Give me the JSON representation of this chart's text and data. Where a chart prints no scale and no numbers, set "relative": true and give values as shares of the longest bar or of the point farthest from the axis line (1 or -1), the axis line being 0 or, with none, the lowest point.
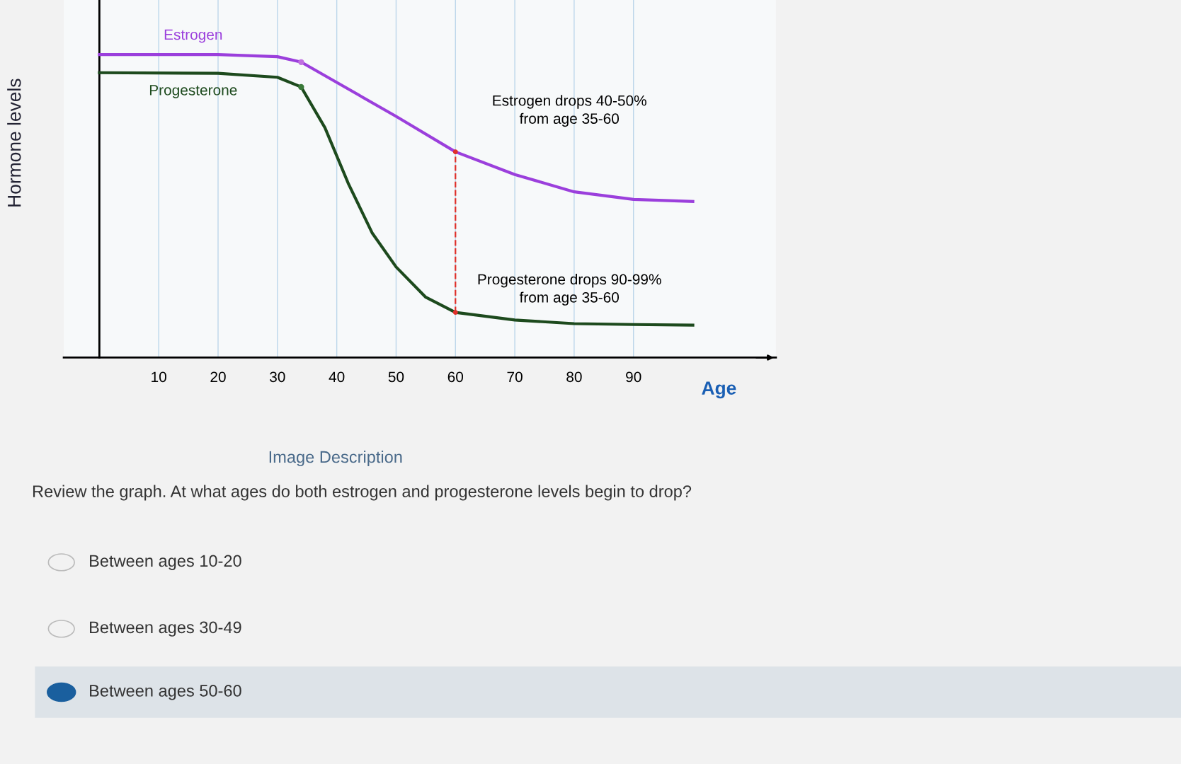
{
  "chart_data": {
    "type": "line",
    "relative": true,
    "xlabel": "Age",
    "ylabel": "Hormone levels",
    "xlim": [
      -6,
      114
    ],
    "xticks": [
      10,
      20,
      30,
      40,
      50,
      60,
      70,
      80,
      90
    ],
    "grid": "x",
    "tick_labels": "x",
    "legend": false,
    "series": [
      {
        "name": "Estrogen",
        "color": "#9b3fdc",
        "x": [
          0,
          20,
          30,
          34,
          40,
          50,
          60,
          70,
          80,
          90,
          100
        ],
        "values": [
          1.0,
          1.0,
          0.993,
          0.975,
          0.908,
          0.796,
          0.679,
          0.604,
          0.547,
          0.522,
          0.515
        ]
      },
      {
        "name": "Progesterone",
        "color": "#1d4a1d",
        "x": [
          0,
          20,
          30,
          34,
          38,
          42,
          46,
          50,
          55,
          60,
          70,
          80,
          90,
          100
        ],
        "values": [
          0.94,
          0.938,
          0.925,
          0.893,
          0.759,
          0.572,
          0.41,
          0.299,
          0.199,
          0.149,
          0.124,
          0.112,
          0.109,
          0.107
        ]
      },
      {
        "color": "#e0302a",
        "line_style": "dashed",
        "marker": "circle",
        "x": [
          60,
          60
        ],
        "values": [
          0.149,
          0.679
        ]
      },
      {
        "type": "scatter",
        "marker": "circle",
        "colors": [
          "#c070e0",
          "#3a7a3a"
        ],
        "x": [
          34,
          34
        ],
        "values": [
          0.975,
          0.893
        ]
      }
    ],
    "annotations": [
      "Estrogen drops 40-50%\nfrom age 35-60",
      "Progesterone drops 90-99%\nfrom age 35-60",
      "Image Description",
      "Review the graph. At what ages do both estrogen and progesterone levels begin to drop?",
      "Between ages 10-20",
      "Between ages 30-49",
      "Between ages 50-60"
    ]
  }
}
